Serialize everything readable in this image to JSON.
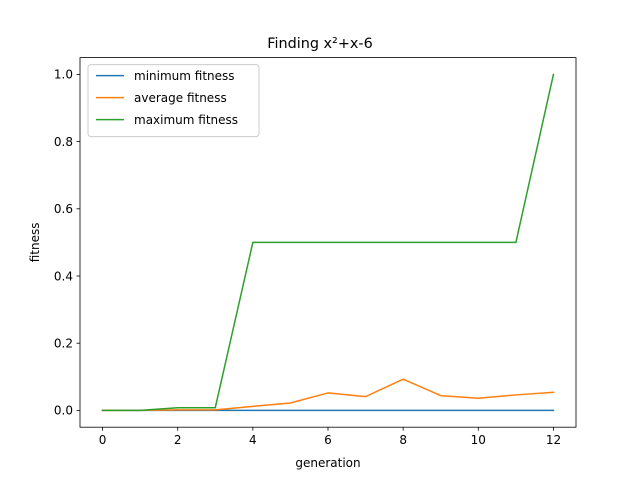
{
  "chart_data": {
    "type": "line",
    "title": "Finding x²+x-6",
    "xlabel": "generation",
    "ylabel": "fitness",
    "x": [
      0,
      1,
      2,
      3,
      4,
      5,
      6,
      7,
      8,
      9,
      10,
      11,
      12
    ],
    "xlim": [
      -0.6,
      12.6
    ],
    "ylim": [
      -0.05,
      1.05
    ],
    "xticks": [
      0,
      2,
      4,
      6,
      8,
      10,
      12
    ],
    "yticks": [
      0.0,
      0.2,
      0.4,
      0.6,
      0.8,
      1.0
    ],
    "xtick_labels": [
      "0",
      "2",
      "4",
      "6",
      "8",
      "10",
      "12"
    ],
    "ytick_labels": [
      "0.0",
      "0.2",
      "0.4",
      "0.6",
      "0.8",
      "1.0"
    ],
    "grid": false,
    "legend_position": "top-left",
    "series": [
      {
        "name": "minimum fitness",
        "color": "#1f77b4",
        "values": [
          0,
          0,
          0,
          0,
          0,
          0,
          0,
          0,
          0,
          0,
          0,
          0,
          0
        ]
      },
      {
        "name": "average fitness",
        "color": "#ff7f0e",
        "values": [
          0.0,
          0.0,
          0.0015,
          0.0015,
          0.012,
          0.022,
          0.052,
          0.041,
          0.093,
          0.044,
          0.036,
          0.046,
          0.054
        ]
      },
      {
        "name": "maximum fitness",
        "color": "#2ca02c",
        "values": [
          0.0,
          0.0,
          0.008,
          0.008,
          0.5,
          0.5,
          0.5,
          0.5,
          0.5,
          0.5,
          0.5,
          0.5,
          1.0
        ]
      }
    ]
  }
}
